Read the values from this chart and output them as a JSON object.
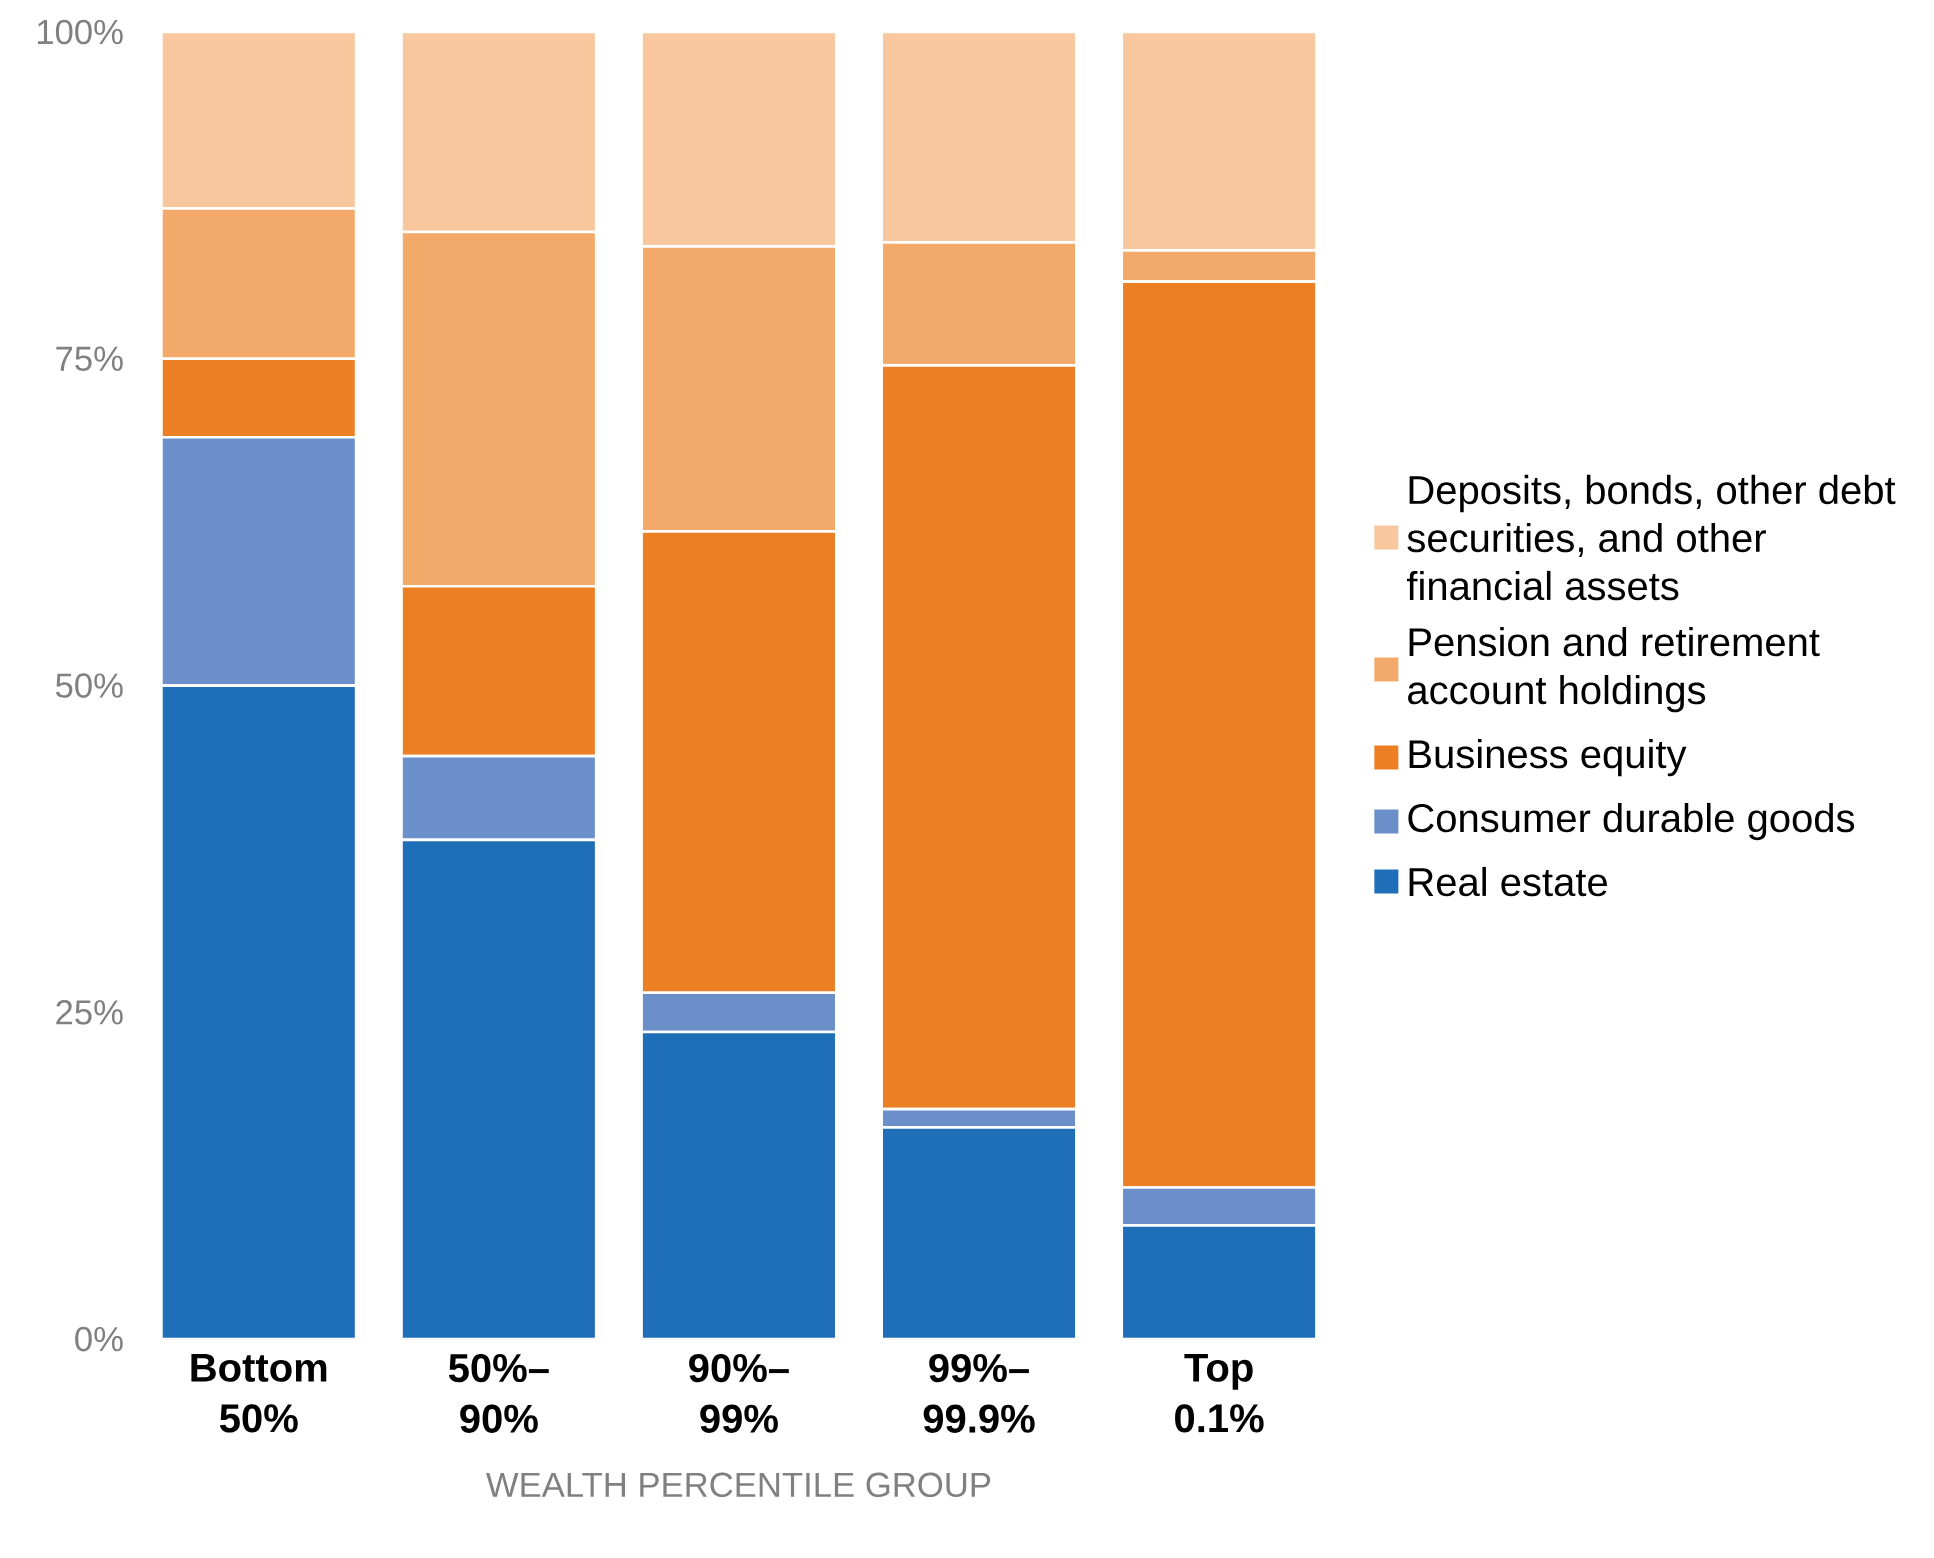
{
  "chart_data": {
    "type": "bar",
    "stacked": true,
    "xlabel": "WEALTH PERCENTILE GROUP",
    "categories": [
      "Bottom 50%",
      "50%–90%",
      "90%–99%",
      "99%–99.9%",
      "Top 0.1%"
    ],
    "series": [
      {
        "name": "Real estate",
        "color": "#1f6fb8",
        "values": [
          50,
          38.2,
          23.5,
          16.2,
          8.7
        ]
      },
      {
        "name": "Consumer durable goods",
        "color": "#6a8fc9",
        "values": [
          19,
          6.4,
          3,
          1.4,
          2.9
        ]
      },
      {
        "name": "Business equity",
        "color": "#ec7f24",
        "values": [
          6,
          13,
          35.3,
          56.9,
          69.3
        ]
      },
      {
        "name": "Pension and retirement account holdings",
        "color": "#f3a96a",
        "values": [
          11.5,
          27.1,
          21.8,
          9.4,
          2.4
        ]
      },
      {
        "name": "Deposits, bonds, other debt securities, and other financial assets",
        "color": "#f8c79d",
        "values": [
          13.5,
          15.3,
          16.4,
          16.1,
          16.7
        ]
      }
    ],
    "ylim": [
      0,
      100
    ],
    "yticks": [
      {
        "value": 0,
        "label": "0%"
      },
      {
        "value": 25,
        "label": "25%"
      },
      {
        "value": 50,
        "label": "50%"
      },
      {
        "value": 75,
        "label": "75%"
      },
      {
        "value": 100,
        "label": "100%"
      }
    ],
    "legend": "right"
  }
}
